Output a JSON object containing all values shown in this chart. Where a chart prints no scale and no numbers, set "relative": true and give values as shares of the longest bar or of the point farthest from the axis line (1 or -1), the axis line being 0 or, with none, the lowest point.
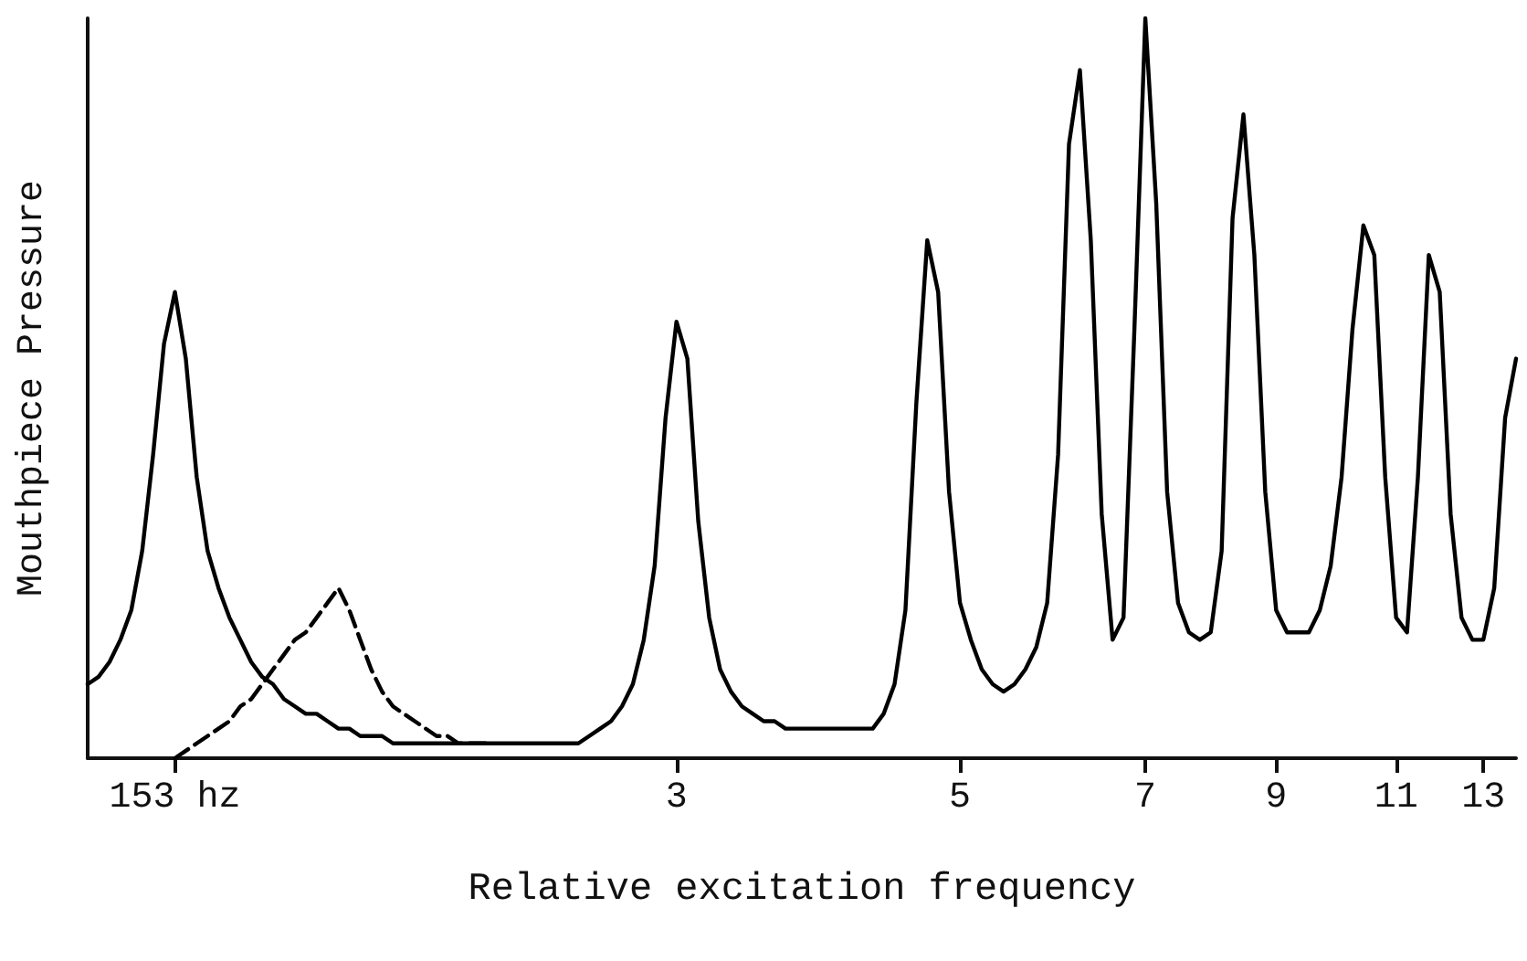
{
  "chart_data": {
    "type": "line",
    "relative": true,
    "xlabel": "Relative excitation frequency",
    "ylabel": "Mouthpiece Pressure",
    "categories": [
      null,
      null,
      null,
      null,
      null,
      null,
      null,
      null,
      "153 hz",
      null,
      null,
      null,
      null,
      null,
      null,
      null,
      null,
      null,
      null,
      null,
      null,
      null,
      null,
      null,
      null,
      null,
      null,
      null,
      null,
      null,
      null,
      null,
      null,
      null,
      null,
      null,
      null,
      null,
      null,
      null,
      null,
      null,
      null,
      null,
      null,
      null,
      null,
      null,
      null,
      null,
      null,
      null,
      null,
      null,
      "3",
      null,
      null,
      null,
      null,
      null,
      null,
      null,
      null,
      null,
      null,
      null,
      null,
      null,
      null,
      null,
      null,
      null,
      null,
      null,
      null,
      null,
      null,
      null,
      null,
      null,
      "5",
      null,
      null,
      null,
      null,
      null,
      null,
      null,
      null,
      null,
      null,
      null,
      null,
      null,
      null,
      null,
      null,
      "7",
      null,
      null,
      null,
      null,
      null,
      null,
      null,
      null,
      null,
      null,
      null,
      "9",
      null,
      null,
      null,
      null,
      null,
      null,
      null,
      null,
      null,
      null,
      "11",
      null,
      null,
      null,
      null,
      null,
      null,
      null,
      "13",
      null,
      null,
      null
    ],
    "series": [
      {
        "color": "#000000",
        "line_style": "solid",
        "values": [
          0.1,
          0.11,
          0.13,
          0.16,
          0.2,
          0.28,
          0.41,
          0.56,
          0.63,
          0.54,
          0.38,
          0.28,
          0.23,
          0.19,
          0.16,
          0.13,
          0.11,
          0.1,
          0.08,
          0.07,
          0.06,
          0.06,
          0.05,
          0.04,
          0.04,
          0.03,
          0.03,
          0.03,
          0.02,
          0.02,
          0.02,
          0.02,
          0.02,
          0.02,
          0.02,
          0.02,
          0.02,
          0.02,
          0.02,
          0.02,
          0.02,
          0.02,
          0.02,
          0.02,
          0.02,
          0.02,
          0.03,
          0.04,
          0.05,
          0.07,
          0.1,
          0.16,
          0.26,
          0.46,
          0.59,
          0.54,
          0.32,
          0.19,
          0.12,
          0.09,
          0.07,
          0.06,
          0.05,
          0.05,
          0.04,
          0.04,
          0.04,
          0.04,
          0.04,
          0.04,
          0.04,
          0.04,
          0.04,
          0.06,
          0.1,
          0.2,
          0.48,
          0.7,
          0.63,
          0.36,
          0.21,
          0.16,
          0.12,
          0.1,
          0.09,
          0.1,
          0.12,
          0.15,
          0.21,
          0.41,
          0.83,
          0.93,
          0.7,
          0.33,
          0.16,
          0.19,
          0.58,
          1.0,
          0.75,
          0.36,
          0.21,
          0.17,
          0.16,
          0.17,
          0.28,
          0.73,
          0.87,
          0.68,
          0.36,
          0.2,
          0.17,
          0.17,
          0.17,
          0.2,
          0.26,
          0.38,
          0.58,
          0.72,
          0.68,
          0.38,
          0.19,
          0.17,
          0.38,
          0.68,
          0.63,
          0.33,
          0.19,
          0.16,
          0.16,
          0.23,
          0.46,
          0.54
        ]
      },
      {
        "color": "#000000",
        "line_style": "dashed",
        "values": [
          null,
          null,
          null,
          null,
          null,
          null,
          null,
          null,
          0.0,
          0.01,
          0.02,
          0.03,
          0.04,
          0.05,
          0.07,
          0.08,
          0.1,
          0.12,
          0.14,
          0.16,
          0.17,
          0.19,
          0.21,
          0.23,
          0.2,
          0.16,
          0.12,
          0.09,
          0.07,
          0.06,
          0.05,
          0.04,
          0.03,
          0.03,
          0.02,
          0.02,
          0.02,
          0.02,
          null,
          null,
          null,
          null,
          null,
          null,
          null,
          null,
          null,
          null,
          null,
          null,
          null,
          null,
          null,
          null,
          null,
          null,
          null,
          null,
          null,
          null,
          null,
          null,
          null,
          null,
          null,
          null,
          null,
          null,
          null,
          null,
          null,
          null,
          null,
          null,
          null,
          null,
          null,
          null,
          null,
          null,
          null,
          null,
          null,
          null,
          null,
          null,
          null,
          null,
          null,
          null,
          null,
          null,
          null,
          null,
          null,
          null,
          null,
          null,
          null,
          null,
          null,
          null,
          null,
          null,
          null,
          null,
          null,
          null,
          null,
          null,
          null,
          null,
          null,
          null,
          null,
          null,
          null,
          null,
          null,
          null,
          null,
          null,
          null,
          null,
          null,
          null,
          null,
          null,
          null,
          null,
          null,
          null
        ]
      }
    ],
    "marker": "none",
    "grid": false
  }
}
